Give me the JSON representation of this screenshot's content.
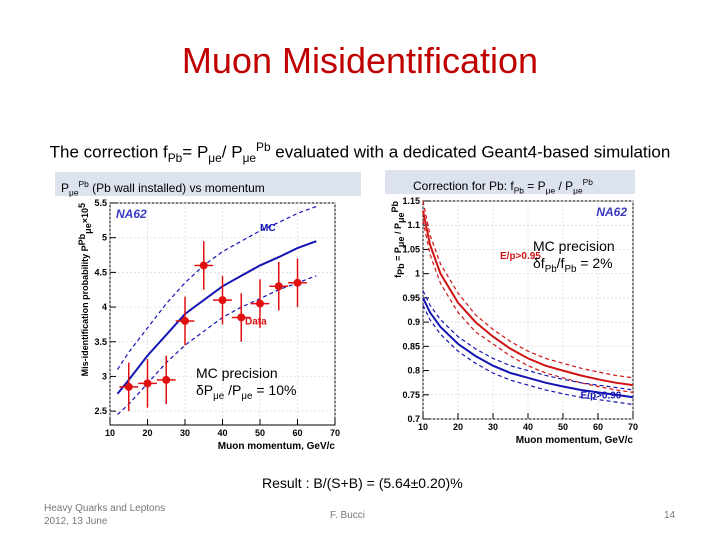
{
  "slide": {
    "title": "Muon Misidentification",
    "subtitle_parts": [
      "The correction f",
      "Pb",
      "= P",
      "μe",
      "/ P",
      "μe",
      "Pb",
      " evaluated with a dedicated Geant4-based simulation"
    ],
    "left_label_parts": [
      "P",
      "μe",
      "Pb",
      " (Pb wall installed) vs momentum"
    ],
    "right_label_parts": [
      "Correction for Pb: f",
      "Pb",
      " = P",
      "μe",
      " / P",
      "μe",
      "Pb"
    ],
    "mc_note_right": [
      "MC precision",
      "δf",
      "Pb",
      "/f",
      "Pb",
      " = 2%"
    ],
    "mc_note_left": [
      "MC precision",
      "δP",
      "μe",
      " /P",
      "μe",
      " = 10%"
    ],
    "result": "Result : B/(S+B) = (5.64±0.20)%",
    "footer_left_line1": "Heavy Quarks and Leptons",
    "footer_left_line2": "2012, 13 June",
    "footer_center": "F. Bucci",
    "page_number": "14"
  },
  "chart_data": [
    {
      "type": "line",
      "experiment": "NA62",
      "ylabel": "Mis-identification probability P",
      "ylabel_sup": "Pb",
      "ylabel_sub": "μe",
      "ylabel_suffix": "×10",
      "ylabel_exp": "5",
      "xlabel": "Muon momentum, GeV/c",
      "xlim": [
        10,
        70
      ],
      "ylim": [
        2.3,
        5.5
      ],
      "xticks": [
        10,
        20,
        30,
        40,
        50,
        60,
        70
      ],
      "yticks": [
        2.5,
        3,
        3.5,
        4,
        4.5,
        5,
        5.5
      ],
      "yticklabels": [
        "2.5",
        "3",
        "3.5",
        "4",
        "4.5",
        "5",
        "5.5"
      ],
      "series": [
        {
          "name": "MC",
          "color": "#1414b4",
          "style": "solid",
          "x": [
            12,
            15,
            20,
            25,
            30,
            35,
            40,
            45,
            50,
            55,
            60,
            65
          ],
          "y": [
            2.75,
            2.95,
            3.3,
            3.6,
            3.9,
            4.1,
            4.3,
            4.45,
            4.6,
            4.72,
            4.85,
            4.95
          ]
        },
        {
          "name": "",
          "color": "#1414b4",
          "style": "dashed",
          "x": [
            12,
            15,
            20,
            25,
            30,
            35,
            40,
            45,
            50,
            55,
            60,
            65
          ],
          "y": [
            3.1,
            3.35,
            3.7,
            4.05,
            4.35,
            4.6,
            4.8,
            4.95,
            5.1,
            5.22,
            5.35,
            5.45
          ]
        },
        {
          "name": "",
          "color": "#1414b4",
          "style": "dashed",
          "x": [
            12,
            15,
            20,
            25,
            30,
            35,
            40,
            45,
            50,
            55,
            60,
            65
          ],
          "y": [
            2.45,
            2.6,
            2.9,
            3.2,
            3.45,
            3.65,
            3.85,
            4.0,
            4.12,
            4.25,
            4.35,
            4.45
          ]
        }
      ],
      "points": {
        "name": "Data",
        "color": "#e01010",
        "x": [
          15,
          20,
          25,
          30,
          35,
          40,
          45,
          50,
          55,
          60
        ],
        "y": [
          2.85,
          2.9,
          2.95,
          3.8,
          4.6,
          4.1,
          3.85,
          4.05,
          4.3,
          4.35
        ],
        "err": [
          0.35,
          0.35,
          0.35,
          0.35,
          0.35,
          0.35,
          0.35,
          0.35,
          0.35,
          0.35
        ]
      },
      "annotations": [
        "MC",
        "Data"
      ]
    },
    {
      "type": "line",
      "experiment": "NA62",
      "ylabel": "f",
      "ylabel_sub": "Pb",
      "ylabel_rest": " = P",
      "ylabel_sub2": "μe",
      "ylabel_rest2": " / P",
      "ylabel_sub3": "μe",
      "ylabel_sup3": "Pb",
      "xlabel": "Muon momentum, GeV/c",
      "xlim": [
        10,
        70
      ],
      "ylim": [
        0.7,
        1.15
      ],
      "xticks": [
        10,
        20,
        30,
        40,
        50,
        60,
        70
      ],
      "yticks": [
        0.7,
        0.75,
        0.8,
        0.85,
        0.9,
        0.95,
        1,
        1.05,
        1.1,
        1.15
      ],
      "yticklabels": [
        "0.7",
        "0.75",
        "0.8",
        "0.85",
        "0.9",
        "0.95",
        "1",
        "1.05",
        "1.1",
        "1.15"
      ],
      "series": [
        {
          "name": "E/p>0.95",
          "color": "#d01414",
          "style": "solid",
          "x": [
            10,
            12,
            15,
            20,
            25,
            30,
            35,
            40,
            45,
            50,
            55,
            60,
            65,
            70
          ],
          "y": [
            1.13,
            1.06,
            1.0,
            0.94,
            0.9,
            0.87,
            0.845,
            0.825,
            0.81,
            0.8,
            0.79,
            0.782,
            0.775,
            0.77
          ]
        },
        {
          "name": "",
          "color": "#d01414",
          "style": "dashed",
          "x": [
            10,
            12,
            15,
            20,
            25,
            30,
            35,
            40,
            45,
            50,
            55,
            60,
            65,
            70
          ],
          "y": [
            1.15,
            1.08,
            1.02,
            0.96,
            0.915,
            0.885,
            0.86,
            0.84,
            0.825,
            0.815,
            0.805,
            0.797,
            0.79,
            0.785
          ]
        },
        {
          "name": "",
          "color": "#d01414",
          "style": "dashed",
          "x": [
            10,
            12,
            15,
            20,
            25,
            30,
            35,
            40,
            45,
            50,
            55,
            60,
            65,
            70
          ],
          "y": [
            1.11,
            1.04,
            0.98,
            0.92,
            0.88,
            0.855,
            0.83,
            0.81,
            0.795,
            0.785,
            0.775,
            0.767,
            0.76,
            0.755
          ]
        },
        {
          "name": "E/p>0.90",
          "color": "#1414b4",
          "style": "solid",
          "x": [
            10,
            12,
            15,
            20,
            25,
            30,
            35,
            40,
            45,
            50,
            55,
            60,
            65,
            70
          ],
          "y": [
            0.95,
            0.92,
            0.89,
            0.855,
            0.83,
            0.81,
            0.795,
            0.785,
            0.775,
            0.767,
            0.76,
            0.755,
            0.75,
            0.745
          ]
        },
        {
          "name": "",
          "color": "#1414b4",
          "style": "dashed",
          "x": [
            10,
            12,
            15,
            20,
            25,
            30,
            35,
            40,
            45,
            50,
            55,
            60,
            65,
            70
          ],
          "y": [
            0.965,
            0.935,
            0.905,
            0.87,
            0.845,
            0.825,
            0.81,
            0.8,
            0.79,
            0.782,
            0.775,
            0.77,
            0.765,
            0.76
          ]
        },
        {
          "name": "",
          "color": "#1414b4",
          "style": "dashed",
          "x": [
            10,
            12,
            15,
            20,
            25,
            30,
            35,
            40,
            45,
            50,
            55,
            60,
            65,
            70
          ],
          "y": [
            0.935,
            0.905,
            0.875,
            0.84,
            0.815,
            0.795,
            0.78,
            0.77,
            0.76,
            0.752,
            0.745,
            0.74,
            0.735,
            0.73
          ]
        }
      ],
      "annotations": [
        "E/p>0.95",
        "E/p>0.90"
      ]
    }
  ]
}
